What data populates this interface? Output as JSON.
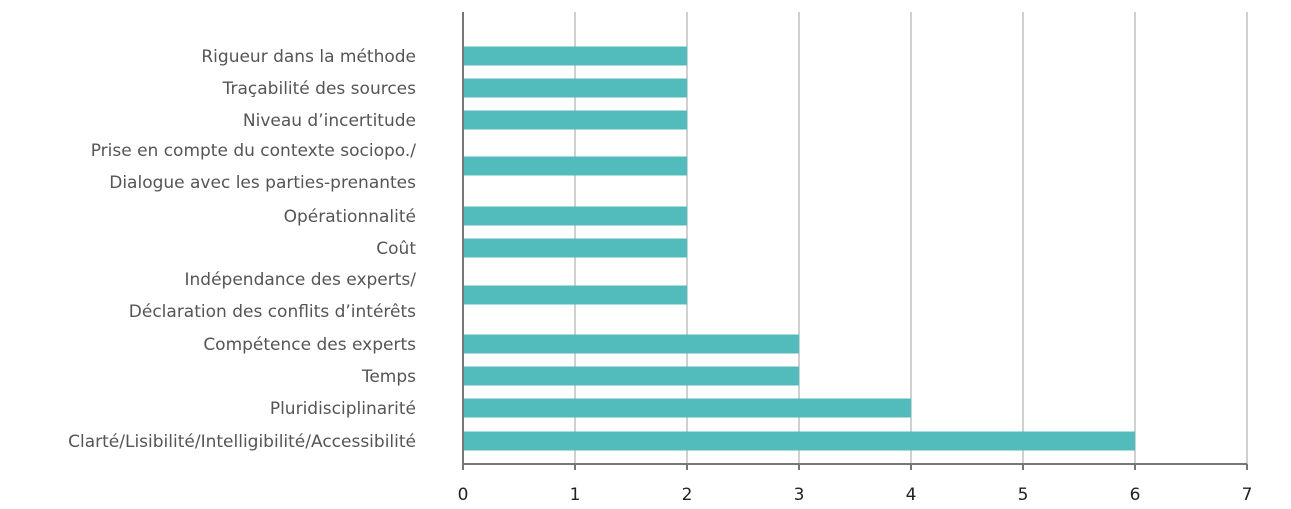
{
  "chart_data": {
    "type": "bar",
    "orientation": "horizontal",
    "title": "",
    "xlabel": "",
    "ylabel": "",
    "categories": [
      [
        "Rigueur dans la méthode"
      ],
      [
        "Traçabilité des sources"
      ],
      [
        "Niveau d’incertitude"
      ],
      [
        "Prise en compte du contexte sociopo./",
        "Dialogue avec les parties-prenantes"
      ],
      [
        "Opérationnalité"
      ],
      [
        "Coût"
      ],
      [
        "Indépendance des experts/",
        "Déclaration des conflits d’intérêts"
      ],
      [
        "Compétence des experts"
      ],
      [
        "Temps"
      ],
      [
        "Pluridisciplinarité"
      ],
      [
        "Clarté/Lisibilité/Intelligibilité/Accessibilité"
      ]
    ],
    "values": [
      2,
      2,
      2,
      2,
      2,
      2,
      2,
      3,
      3,
      4,
      6
    ],
    "xlim": [
      0,
      7
    ],
    "xticks": [
      "0",
      "1",
      "2",
      "3",
      "4",
      "5",
      "6",
      "7"
    ],
    "grid": "vertical",
    "legend": "none",
    "colors": {
      "bar": "#52bbbb",
      "grid": "#d0d0d0",
      "axis": "#777777",
      "category_text": "#555555",
      "tick_text": "#222222"
    }
  }
}
